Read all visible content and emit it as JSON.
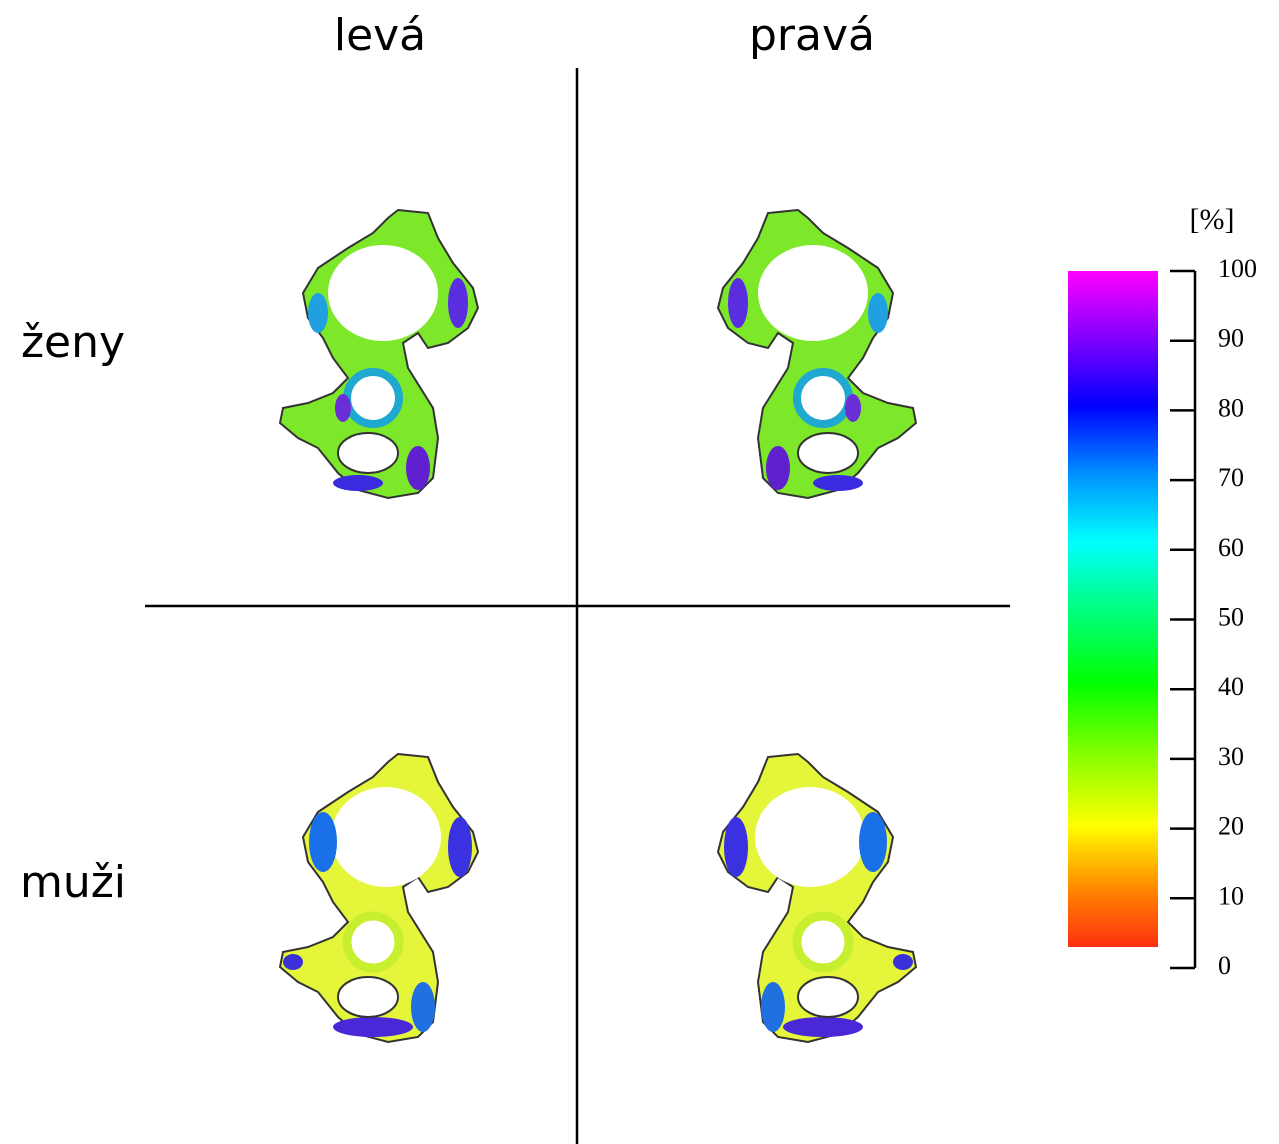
{
  "columns": [
    "levá",
    "pravá"
  ],
  "rows": [
    "ženy",
    "muži"
  ],
  "colorbar": {
    "unit": "[%]",
    "lim": [
      0,
      100
    ],
    "ticks": [
      0,
      10,
      20,
      30,
      40,
      50,
      60,
      70,
      80,
      90,
      100
    ]
  }
}
